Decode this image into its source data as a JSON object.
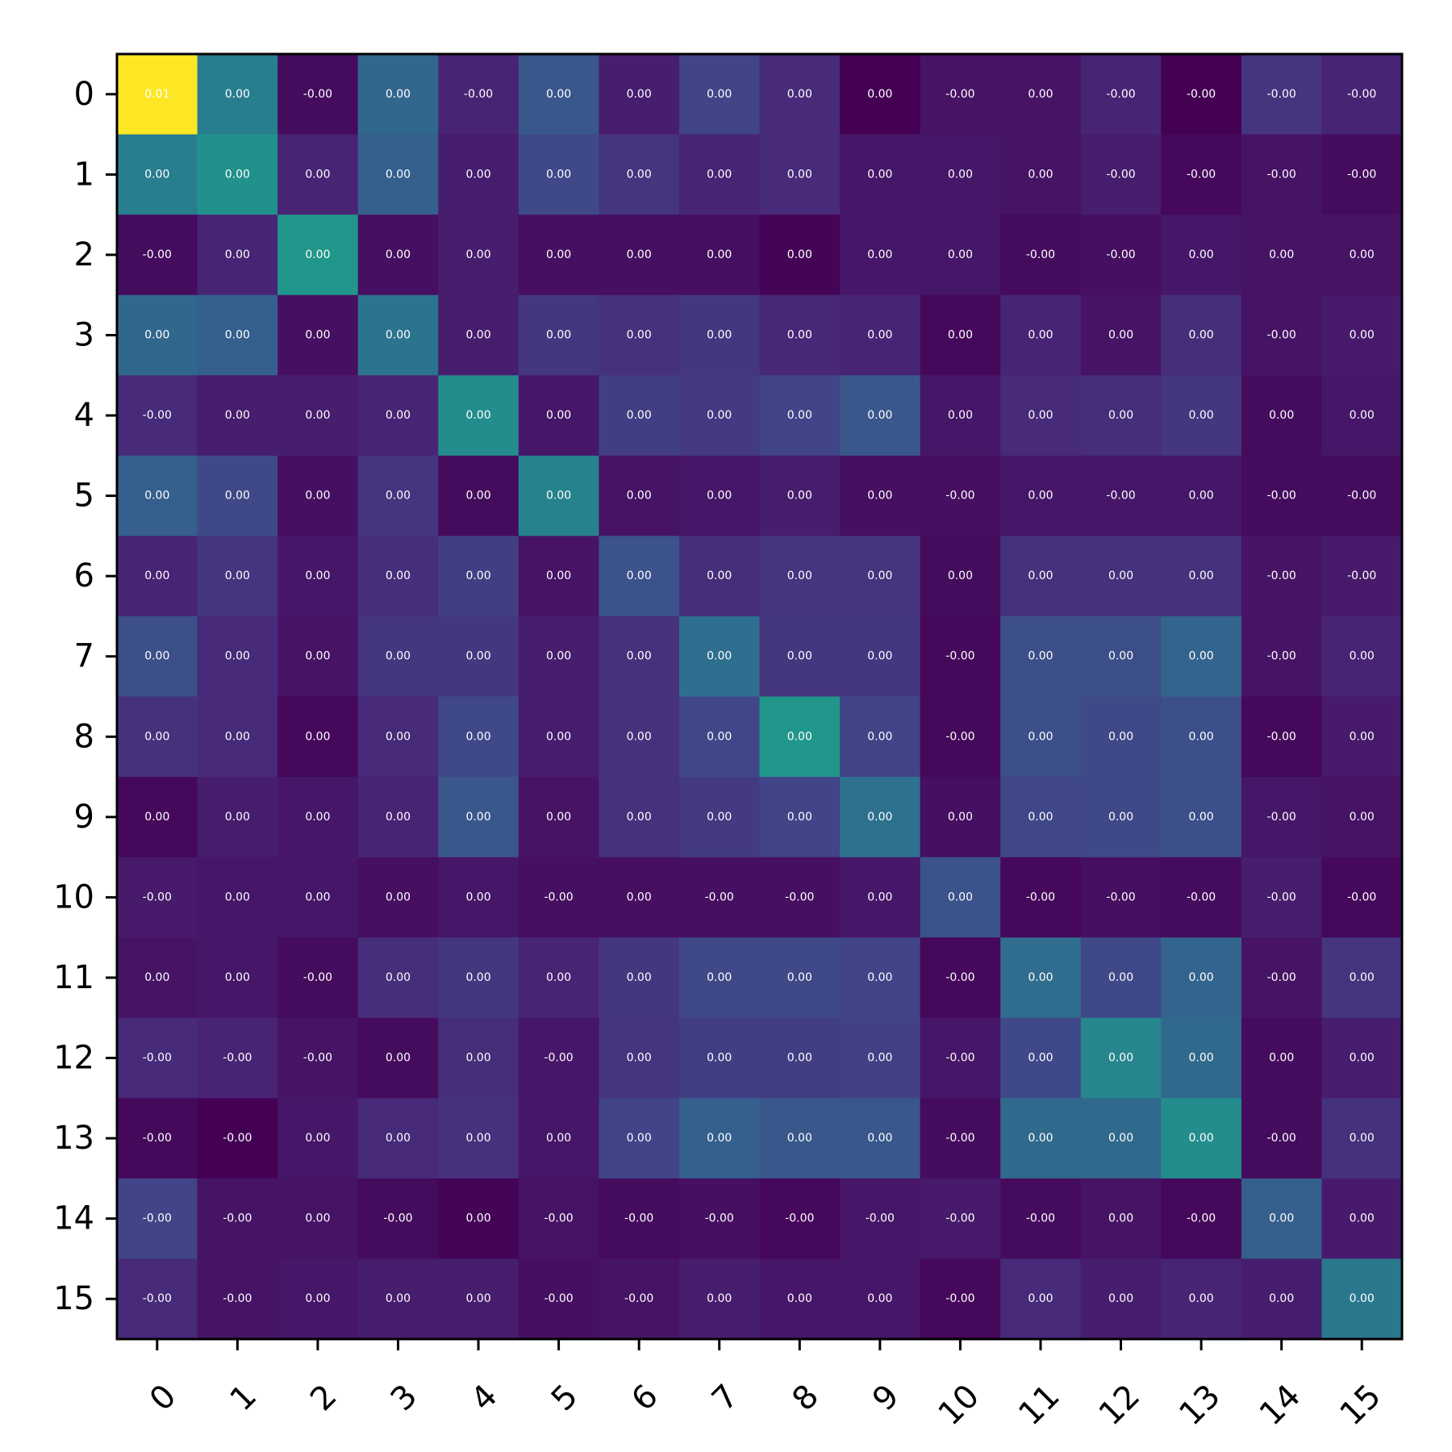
{
  "chart_data": {
    "type": "heatmap",
    "title": "",
    "xlabel": "",
    "ylabel": "",
    "colormap": "viridis",
    "x_tick_labels": [
      "0",
      "1",
      "2",
      "3",
      "4",
      "5",
      "6",
      "7",
      "8",
      "9",
      "10",
      "11",
      "12",
      "13",
      "14",
      "15"
    ],
    "y_tick_labels": [
      "0",
      "1",
      "2",
      "3",
      "4",
      "5",
      "6",
      "7",
      "8",
      "9",
      "10",
      "11",
      "12",
      "13",
      "14",
      "15"
    ],
    "cell_labels": [
      [
        "0.01",
        "0.00",
        "-0.00",
        "0.00",
        "-0.00",
        "0.00",
        "0.00",
        "0.00",
        "0.00",
        "0.00",
        "-0.00",
        "0.00",
        "-0.00",
        "-0.00",
        "-0.00",
        "-0.00"
      ],
      [
        "0.00",
        "0.00",
        "0.00",
        "0.00",
        "0.00",
        "0.00",
        "0.00",
        "0.00",
        "0.00",
        "0.00",
        "0.00",
        "0.00",
        "-0.00",
        "-0.00",
        "-0.00",
        "-0.00"
      ],
      [
        "-0.00",
        "0.00",
        "0.00",
        "0.00",
        "0.00",
        "0.00",
        "0.00",
        "0.00",
        "0.00",
        "0.00",
        "0.00",
        "-0.00",
        "-0.00",
        "0.00",
        "0.00",
        "0.00"
      ],
      [
        "0.00",
        "0.00",
        "0.00",
        "0.00",
        "0.00",
        "0.00",
        "0.00",
        "0.00",
        "0.00",
        "0.00",
        "0.00",
        "0.00",
        "0.00",
        "0.00",
        "-0.00",
        "0.00"
      ],
      [
        "-0.00",
        "0.00",
        "0.00",
        "0.00",
        "0.00",
        "0.00",
        "0.00",
        "0.00",
        "0.00",
        "0.00",
        "0.00",
        "0.00",
        "0.00",
        "0.00",
        "0.00",
        "0.00"
      ],
      [
        "0.00",
        "0.00",
        "0.00",
        "0.00",
        "0.00",
        "0.00",
        "0.00",
        "0.00",
        "0.00",
        "0.00",
        "-0.00",
        "0.00",
        "-0.00",
        "0.00",
        "-0.00",
        "-0.00"
      ],
      [
        "0.00",
        "0.00",
        "0.00",
        "0.00",
        "0.00",
        "0.00",
        "0.00",
        "0.00",
        "0.00",
        "0.00",
        "0.00",
        "0.00",
        "0.00",
        "0.00",
        "-0.00",
        "-0.00"
      ],
      [
        "0.00",
        "0.00",
        "0.00",
        "0.00",
        "0.00",
        "0.00",
        "0.00",
        "0.00",
        "0.00",
        "0.00",
        "-0.00",
        "0.00",
        "0.00",
        "0.00",
        "-0.00",
        "0.00"
      ],
      [
        "0.00",
        "0.00",
        "0.00",
        "0.00",
        "0.00",
        "0.00",
        "0.00",
        "0.00",
        "0.00",
        "0.00",
        "-0.00",
        "0.00",
        "0.00",
        "0.00",
        "-0.00",
        "0.00"
      ],
      [
        "0.00",
        "0.00",
        "0.00",
        "0.00",
        "0.00",
        "0.00",
        "0.00",
        "0.00",
        "0.00",
        "0.00",
        "0.00",
        "0.00",
        "0.00",
        "0.00",
        "-0.00",
        "0.00"
      ],
      [
        "-0.00",
        "0.00",
        "0.00",
        "0.00",
        "0.00",
        "-0.00",
        "0.00",
        "-0.00",
        "-0.00",
        "0.00",
        "0.00",
        "-0.00",
        "-0.00",
        "-0.00",
        "-0.00",
        "-0.00"
      ],
      [
        "0.00",
        "0.00",
        "-0.00",
        "0.00",
        "0.00",
        "0.00",
        "0.00",
        "0.00",
        "0.00",
        "0.00",
        "-0.00",
        "0.00",
        "0.00",
        "0.00",
        "-0.00",
        "0.00"
      ],
      [
        "-0.00",
        "-0.00",
        "-0.00",
        "0.00",
        "0.00",
        "-0.00",
        "0.00",
        "0.00",
        "0.00",
        "0.00",
        "-0.00",
        "0.00",
        "0.00",
        "0.00",
        "0.00",
        "0.00"
      ],
      [
        "-0.00",
        "-0.00",
        "0.00",
        "0.00",
        "0.00",
        "0.00",
        "0.00",
        "0.00",
        "0.00",
        "0.00",
        "-0.00",
        "0.00",
        "0.00",
        "0.00",
        "-0.00",
        "0.00"
      ],
      [
        "-0.00",
        "-0.00",
        "0.00",
        "-0.00",
        "0.00",
        "-0.00",
        "-0.00",
        "-0.00",
        "-0.00",
        "-0.00",
        "-0.00",
        "-0.00",
        "0.00",
        "-0.00",
        "0.00",
        "0.00"
      ],
      [
        "-0.00",
        "-0.00",
        "0.00",
        "0.00",
        "0.00",
        "-0.00",
        "-0.00",
        "0.00",
        "0.00",
        "0.00",
        "-0.00",
        "0.00",
        "0.00",
        "0.00",
        "0.00",
        "0.00"
      ]
    ],
    "intensity": [
      [
        1.0,
        0.42,
        0.03,
        0.33,
        0.1,
        0.27,
        0.08,
        0.2,
        0.12,
        0.0,
        0.05,
        0.05,
        0.1,
        0.0,
        0.15,
        0.1
      ],
      [
        0.42,
        0.5,
        0.1,
        0.3,
        0.08,
        0.22,
        0.15,
        0.1,
        0.12,
        0.06,
        0.06,
        0.05,
        0.08,
        0.02,
        0.05,
        0.03
      ],
      [
        0.03,
        0.1,
        0.52,
        0.04,
        0.08,
        0.04,
        0.04,
        0.04,
        0.01,
        0.06,
        0.06,
        0.03,
        0.04,
        0.06,
        0.05,
        0.05
      ],
      [
        0.33,
        0.3,
        0.04,
        0.38,
        0.08,
        0.16,
        0.14,
        0.16,
        0.11,
        0.1,
        0.02,
        0.1,
        0.05,
        0.13,
        0.05,
        0.07
      ],
      [
        0.12,
        0.08,
        0.08,
        0.1,
        0.48,
        0.06,
        0.18,
        0.17,
        0.2,
        0.27,
        0.06,
        0.12,
        0.13,
        0.16,
        0.03,
        0.06
      ],
      [
        0.3,
        0.22,
        0.04,
        0.15,
        0.03,
        0.44,
        0.05,
        0.06,
        0.08,
        0.04,
        0.04,
        0.06,
        0.06,
        0.06,
        0.03,
        0.03
      ],
      [
        0.1,
        0.15,
        0.06,
        0.13,
        0.18,
        0.05,
        0.25,
        0.13,
        0.15,
        0.15,
        0.03,
        0.14,
        0.14,
        0.14,
        0.05,
        0.07
      ],
      [
        0.24,
        0.12,
        0.05,
        0.16,
        0.16,
        0.08,
        0.14,
        0.36,
        0.16,
        0.16,
        0.02,
        0.24,
        0.24,
        0.32,
        0.05,
        0.1
      ],
      [
        0.14,
        0.12,
        0.02,
        0.12,
        0.22,
        0.08,
        0.14,
        0.21,
        0.52,
        0.2,
        0.02,
        0.24,
        0.22,
        0.24,
        0.02,
        0.07
      ],
      [
        0.02,
        0.08,
        0.06,
        0.1,
        0.27,
        0.05,
        0.14,
        0.17,
        0.2,
        0.37,
        0.04,
        0.21,
        0.22,
        0.24,
        0.06,
        0.05
      ],
      [
        0.07,
        0.06,
        0.06,
        0.04,
        0.06,
        0.04,
        0.04,
        0.04,
        0.04,
        0.06,
        0.25,
        0.02,
        0.04,
        0.03,
        0.08,
        0.02
      ],
      [
        0.05,
        0.06,
        0.03,
        0.13,
        0.16,
        0.1,
        0.16,
        0.22,
        0.22,
        0.2,
        0.02,
        0.35,
        0.22,
        0.32,
        0.05,
        0.15
      ],
      [
        0.12,
        0.1,
        0.05,
        0.03,
        0.13,
        0.06,
        0.15,
        0.18,
        0.18,
        0.19,
        0.06,
        0.22,
        0.45,
        0.34,
        0.03,
        0.08
      ],
      [
        0.02,
        0.0,
        0.06,
        0.12,
        0.14,
        0.06,
        0.2,
        0.3,
        0.27,
        0.27,
        0.03,
        0.34,
        0.34,
        0.48,
        0.03,
        0.14
      ],
      [
        0.2,
        0.05,
        0.05,
        0.03,
        0.01,
        0.05,
        0.03,
        0.04,
        0.02,
        0.06,
        0.07,
        0.03,
        0.05,
        0.02,
        0.3,
        0.07
      ],
      [
        0.12,
        0.05,
        0.06,
        0.08,
        0.08,
        0.04,
        0.05,
        0.08,
        0.06,
        0.06,
        0.02,
        0.12,
        0.08,
        0.1,
        0.08,
        0.4
      ]
    ]
  }
}
